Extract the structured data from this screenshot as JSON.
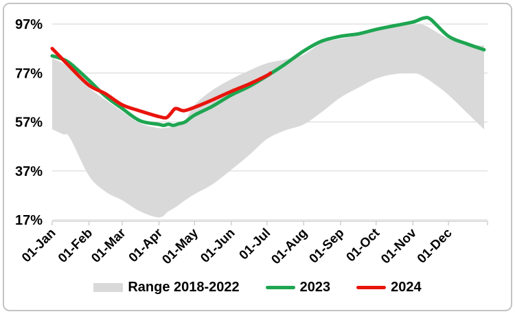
{
  "chart_data": {
    "type": "area",
    "title": "",
    "xlabel": "",
    "ylabel": "",
    "x_axis": {
      "tick_labels": [
        "01-Jan",
        "01-Feb",
        "01-Mar",
        "01-Apr",
        "01-May",
        "01-Jun",
        "01-Jul",
        "01-Aug",
        "01-Sep",
        "01-Oct",
        "01-Nov",
        "01-Dec"
      ],
      "tick_days": [
        1,
        32,
        60,
        91,
        121,
        152,
        182,
        213,
        244,
        274,
        305,
        335
      ],
      "range_days": [
        1,
        365
      ]
    },
    "y_axis": {
      "tick_labels": [
        "17%",
        "37%",
        "57%",
        "77%",
        "97%"
      ],
      "tick_values": [
        17,
        37,
        57,
        77,
        97
      ],
      "range": [
        16.4,
        101.3
      ],
      "grid": true
    },
    "series": [
      {
        "name": "Range 2018-2022",
        "type": "band",
        "color": "#d9d9d9",
        "days": [
          1,
          10,
          16,
          32,
          46,
          60,
          75,
          91,
          99,
          106,
          113,
          121,
          136,
          152,
          167,
          182,
          197,
          213,
          228,
          244,
          259,
          274,
          289,
          305,
          314,
          326,
          335,
          350,
          365
        ],
        "upper": [
          83,
          81,
          78.5,
          71,
          66,
          61.3,
          56.5,
          54.5,
          54.8,
          55.2,
          57.5,
          64,
          70,
          74.5,
          78,
          81,
          82.5,
          84.5,
          89.3,
          91,
          92.5,
          95,
          96,
          96.8,
          96.6,
          93.4,
          91,
          88.7,
          88.2
        ],
        "lower": [
          54,
          52,
          50.5,
          35,
          28.5,
          25,
          20.5,
          18,
          20.5,
          22.5,
          25,
          27.5,
          31.5,
          37.5,
          43.5,
          50,
          53.5,
          56,
          61,
          67,
          71,
          74.7,
          76.5,
          77,
          75.5,
          71.5,
          68,
          61,
          54
        ]
      },
      {
        "name": "2023",
        "type": "line",
        "color": "#1ea551",
        "days": [
          1,
          8,
          16,
          32,
          46,
          60,
          75,
          91,
          95,
          99,
          103,
          108,
          113,
          121,
          136,
          152,
          167,
          182,
          197,
          213,
          228,
          244,
          259,
          274,
          289,
          305,
          314,
          320,
          335,
          350,
          365
        ],
        "values": [
          84,
          83,
          81,
          74,
          67.5,
          62.5,
          57.5,
          56,
          55.6,
          56.1,
          55.6,
          56.3,
          57,
          59.8,
          63.4,
          68,
          71.5,
          75.8,
          80.5,
          86,
          90,
          92,
          93,
          94.8,
          96.3,
          97.8,
          99.4,
          98.9,
          92,
          89,
          86.5
        ]
      },
      {
        "name": "2024",
        "type": "line",
        "color": "#e8150d",
        "days": [
          1,
          8,
          16,
          32,
          46,
          60,
          75,
          85,
          91,
          97,
          101,
          105,
          112,
          121,
          136,
          152,
          167,
          182,
          185
        ],
        "values": [
          87,
          83.5,
          79.5,
          72,
          68.5,
          64,
          61.5,
          60,
          59.2,
          58.7,
          60.5,
          62.5,
          61.6,
          63,
          66,
          69.5,
          72.5,
          76,
          77
        ]
      }
    ],
    "legend": {
      "position": "bottom",
      "items": [
        {
          "label": "Range 2018-2022",
          "swatch": "band"
        },
        {
          "label": "2023",
          "swatch": "line"
        },
        {
          "label": "2024",
          "swatch": "line"
        }
      ]
    }
  },
  "colors": {
    "band": "#d9d9d9",
    "line_2023": "#1ea551",
    "line_2024": "#e8150d",
    "grid": "#dbdbdb",
    "axis": "#c9c9c9",
    "text": "#000000",
    "frame": "#c3c3c3",
    "background": "#ffffff"
  }
}
